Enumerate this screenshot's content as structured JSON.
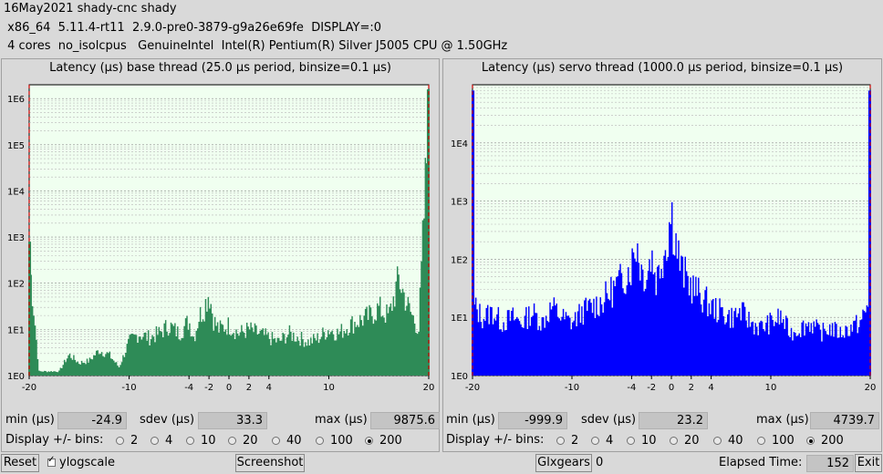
{
  "header": {
    "line1": "16May2021 shady-cnc shady",
    "line2": " x86_64  5.11.4-rt11  2.9.0-pre0-3879-g9a26e69fe  DISPLAY=:0",
    "line3": " 4 cores  no_isolcpus   GenuineIntel  Intel(R) Pentium(R) Silver J5005 CPU @ 1.50GHz"
  },
  "colors": {
    "base": "#2e8b57",
    "servo": "#0000ff",
    "limit": "#d00000",
    "plot_bg": "#f0fff0"
  },
  "base": {
    "title": "Latency (µs) base thread (25.0 µs period, binsize=0.1 µs)",
    "min_label": "min (µs)",
    "min": "-24.9",
    "sdev_label": "sdev (µs)",
    "sdev": "33.3",
    "max_label": "max (µs)",
    "max": "9875.6",
    "bins_label": "Display +/- bins:",
    "bins": [
      "2",
      "4",
      "10",
      "20",
      "40",
      "100",
      "200"
    ],
    "selected_bin": "200"
  },
  "servo": {
    "title": "Latency (µs) servo thread (1000.0 µs period, binsize=0.1 µs)",
    "min_label": "min (µs)",
    "min": "-999.9",
    "sdev_label": "sdev (µs)",
    "sdev": "23.2",
    "max_label": "max (µs)",
    "max": "4739.7",
    "bins_label": "Display +/- bins:",
    "bins": [
      "2",
      "4",
      "10",
      "20",
      "40",
      "100",
      "200"
    ],
    "selected_bin": "200"
  },
  "footer": {
    "reset": "Reset",
    "ylogscale": "ylogscale",
    "screenshot": "Screenshot",
    "glxgears": "Glxgears",
    "glxgears_count": "0",
    "elapsed_label": "Elapsed Time:",
    "elapsed": "152",
    "exit": "Exit"
  },
  "chart_data": [
    {
      "type": "bar",
      "title": "Latency (µs) base thread (25.0 µs period, binsize=0.1 µs)",
      "y_scale": "log",
      "xlim": [
        -20,
        20
      ],
      "ylim_log10": [
        0,
        6.3
      ],
      "x_ticks": [
        "-20",
        "-10",
        "-4",
        "-2",
        "0",
        "2",
        "4",
        "10",
        "20"
      ],
      "y_ticks": [
        "1E0",
        "1E1",
        "1E2",
        "1E3",
        "1E4",
        "1E5",
        "1E6"
      ],
      "grid": true,
      "limit_lines_x": [
        -20,
        20
      ],
      "envelope_x": [
        -20,
        -19,
        -18,
        -17,
        -16,
        -15,
        -14,
        -13,
        -12,
        -11,
        -10,
        -9,
        -8,
        -7,
        -6,
        -5,
        -4,
        -3.5,
        -3,
        -2.5,
        -2,
        -1.5,
        -1,
        0,
        1,
        2,
        3,
        4,
        5,
        6,
        7,
        8,
        9,
        10,
        11,
        12,
        13,
        14,
        15,
        16,
        17,
        18,
        19,
        20
      ],
      "envelope_log10": [
        2.9,
        0.1,
        0.1,
        0.1,
        0.5,
        0.3,
        0.35,
        0.6,
        0.5,
        0.2,
        0.8,
        1.0,
        0.9,
        1.0,
        1.2,
        1.0,
        1.3,
        0.9,
        1.4,
        1.6,
        2.0,
        1.3,
        1.1,
        1.2,
        1.0,
        1.1,
        1.0,
        0.9,
        0.8,
        1.0,
        0.9,
        0.8,
        0.9,
        1.1,
        1.0,
        1.2,
        1.3,
        1.4,
        1.6,
        1.4,
        2.3,
        1.6,
        1.1,
        6.2
      ]
    },
    {
      "type": "bar",
      "title": "Latency (µs) servo thread (1000.0 µs period, binsize=0.1 µs)",
      "y_scale": "log",
      "xlim": [
        -20,
        20
      ],
      "ylim_log10": [
        0,
        5
      ],
      "x_ticks": [
        "-20",
        "-10",
        "-4",
        "-2",
        "0",
        "2",
        "4",
        "10",
        "20"
      ],
      "y_ticks": [
        "1E0",
        "1E1",
        "1E2",
        "1E3",
        "1E4"
      ],
      "grid": true,
      "limit_lines_x": [
        -20,
        20
      ],
      "envelope_x": [
        -20,
        -19.8,
        -19,
        -18,
        -17,
        -16,
        -15,
        -14,
        -13,
        -12,
        -11,
        -10,
        -9,
        -8,
        -7,
        -6,
        -5,
        -4,
        -3.5,
        -3,
        -2.5,
        -2,
        -1.5,
        -1,
        -0.5,
        0,
        0.5,
        1,
        2,
        3,
        4,
        5,
        6,
        7,
        8,
        9,
        10,
        11,
        12,
        13,
        14,
        15,
        16,
        17,
        18,
        19,
        19.8,
        20
      ],
      "envelope_log10": [
        4.9,
        1.3,
        1.1,
        1.2,
        1.0,
        1.1,
        1.0,
        1.2,
        1.0,
        1.3,
        1.1,
        1.0,
        1.2,
        1.3,
        1.4,
        1.6,
        1.8,
        2.1,
        2.55,
        2.0,
        1.9,
        2.3,
        1.8,
        2.2,
        2.5,
        3.1,
        2.5,
        2.0,
        1.7,
        1.5,
        1.3,
        1.2,
        1.1,
        1.2,
        1.0,
        0.9,
        1.0,
        1.1,
        0.8,
        0.9,
        1.0,
        0.8,
        0.9,
        0.8,
        0.9,
        1.0,
        1.3,
        4.9
      ]
    }
  ]
}
